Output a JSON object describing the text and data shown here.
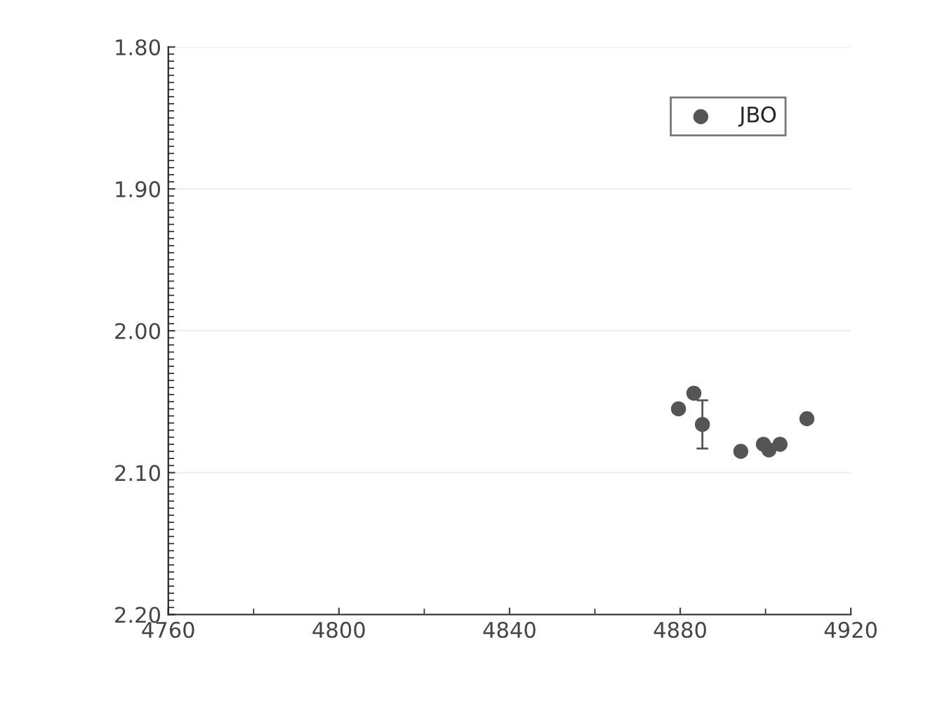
{
  "chart_data": {
    "type": "scatter",
    "x": [
      4879.6,
      4883.2,
      4885.2,
      4894.2,
      4899.5,
      4900.8,
      4903.4,
      4909.7
    ],
    "series": [
      {
        "name": "JBO",
        "color": "#555555",
        "values": [
          2.055,
          2.044,
          2.066,
          2.085,
          2.08,
          2.084,
          2.08,
          2.062
        ],
        "errors": [
          null,
          null,
          0.017,
          null,
          null,
          null,
          null,
          null
        ]
      }
    ],
    "xlim": [
      4760,
      4920
    ],
    "xticks": [
      4760,
      4800,
      4840,
      4880,
      4920
    ],
    "ylim": [
      2.2,
      1.8
    ],
    "yticks": [
      {
        "value": 1.8,
        "label": "1.80"
      },
      {
        "value": 1.9,
        "label": "1.90"
      },
      {
        "value": 2.0,
        "label": "2.00"
      },
      {
        "value": 2.1,
        "label": "2.10"
      },
      {
        "value": 2.2,
        "label": "2.20"
      }
    ],
    "grid": "y",
    "legend": "top right",
    "marker": "circle"
  }
}
